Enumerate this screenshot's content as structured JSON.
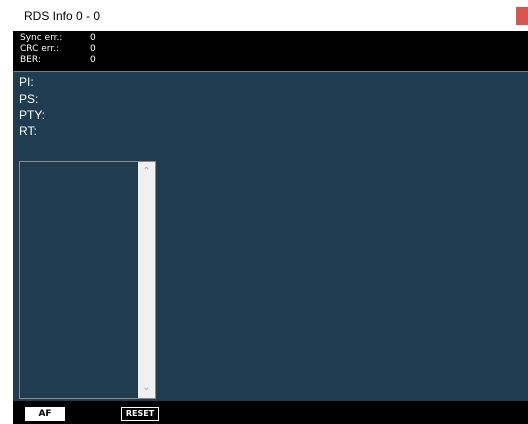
{
  "window": {
    "title": "RDS Info 0 - 0"
  },
  "stats": [
    {
      "label": "Sync err.:",
      "value": "0"
    },
    {
      "label": "CRC err.:",
      "value": "0"
    },
    {
      "label": "BER:",
      "value": "0"
    }
  ],
  "fields": {
    "pi": "PI:",
    "ps": "PS:",
    "pty": "PTY:",
    "rt": "RT:"
  },
  "buttons": {
    "af": "AF",
    "reset": "RESET"
  },
  "icons": {
    "scroll_up": "chevron-up-icon",
    "scroll_down": "chevron-down-icon",
    "close": "close-icon"
  },
  "colors": {
    "panel_bg": "#203c51",
    "close_red": "#d9534f"
  }
}
